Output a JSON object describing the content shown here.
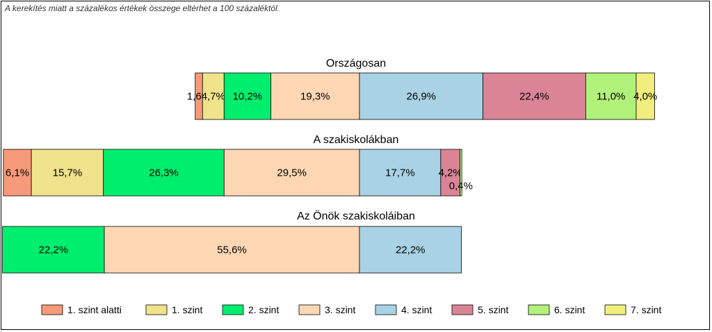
{
  "footnote": "A kerekítés miatt a  százalékos értékek összege eltérhet a 100 százaléktól.",
  "chart_data": {
    "type": "bar",
    "orientation": "horizontal",
    "stacked": true,
    "legend_position": "bottom",
    "grid": false,
    "levels": [
      "1. szint alatti",
      "1. szint",
      "2. szint",
      "3. szint",
      "4. szint",
      "5. szint",
      "6. szint",
      "7. szint"
    ],
    "colors": [
      "#F79A7A",
      "#EFE38C",
      "#00EE6E",
      "#FDD7B4",
      "#A9D3E5",
      "#DA8496",
      "#B2F27B",
      "#F2EE7E"
    ],
    "aligned_boundary": "3. szint / 4. szint",
    "groups": [
      {
        "name": "Országosan",
        "values": [
          1.6,
          4.7,
          10.2,
          19.3,
          26.9,
          22.4,
          11.0,
          4.0
        ],
        "labels": [
          "1,6%",
          "4,7%",
          "10,2%",
          "19,3%",
          "26,9%",
          "22,4%",
          "11,0%",
          "4,0%"
        ]
      },
      {
        "name": "A szakiskolákban",
        "values": [
          6.1,
          15.7,
          26.3,
          29.5,
          17.7,
          4.2,
          0.4,
          0.0
        ],
        "labels": [
          "6,1%",
          "15,7%",
          "26,3%",
          "29,5%",
          "17,7%",
          "4,2%",
          "0,4%",
          ""
        ]
      },
      {
        "name": "Az Önök szakiskoláiban",
        "values": [
          0,
          0,
          22.2,
          55.6,
          22.2,
          0,
          0,
          0
        ],
        "labels": [
          "",
          "",
          "22,2%",
          "55,6%",
          "22,2%",
          "",
          "",
          ""
        ]
      }
    ]
  }
}
